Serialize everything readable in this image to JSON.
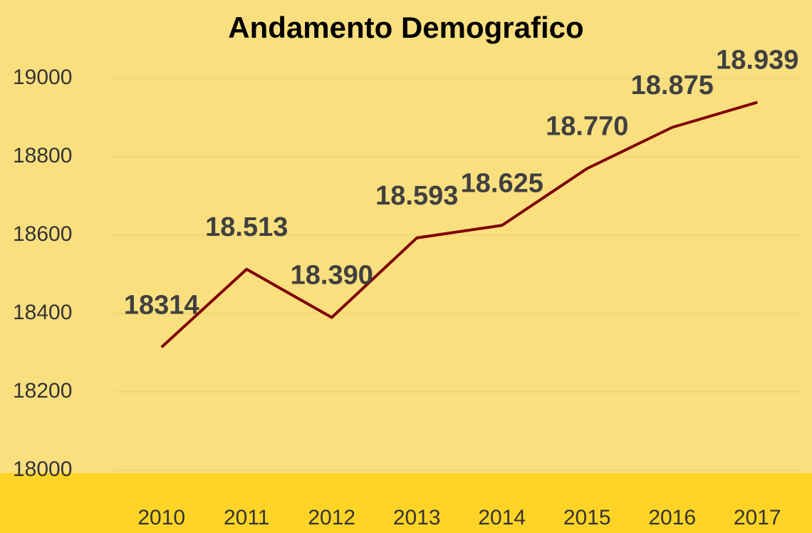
{
  "chart_data": {
    "type": "line",
    "title": "Andamento Demografico",
    "categories": [
      "2010",
      "2011",
      "2012",
      "2013",
      "2014",
      "2015",
      "2016",
      "2017"
    ],
    "values": [
      18314,
      18513,
      18390,
      18593,
      18625,
      18770,
      18875,
      18939
    ],
    "value_labels": [
      "18314",
      "18.513",
      "18.390",
      "18.593",
      "18.625",
      "18.770",
      "18.875",
      "18.939"
    ],
    "color": "#7f0000",
    "ylim": [
      18000,
      19000
    ],
    "yticks": [
      18000,
      18200,
      18400,
      18600,
      18800,
      19000
    ],
    "grid": true
  }
}
